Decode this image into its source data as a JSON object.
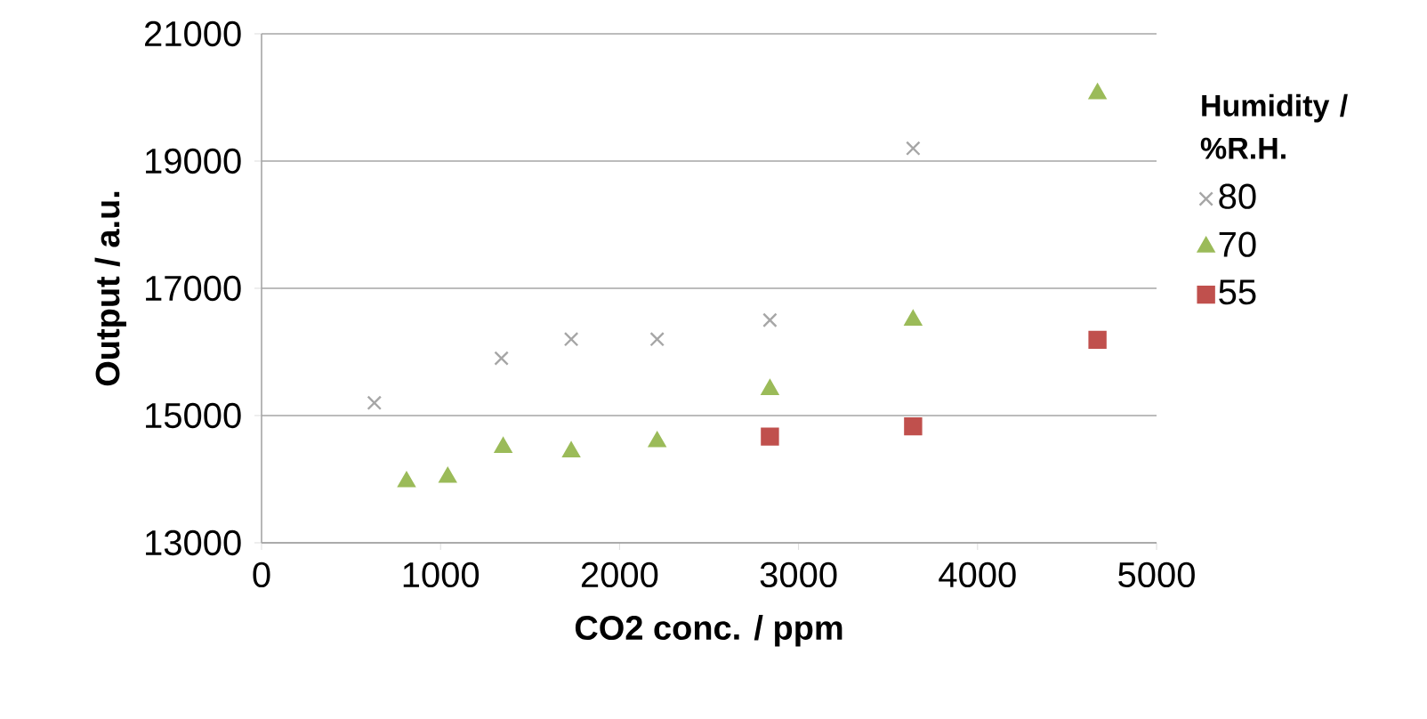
{
  "chart_data": {
    "type": "scatter",
    "xlabel": "CO2 conc.  /  ppm",
    "ylabel": "Output  /  a.u.",
    "legend_title": "Humidity / %R.H.",
    "xlim": [
      0,
      5000
    ],
    "xticks": [
      0,
      1000,
      2000,
      3000,
      4000,
      5000
    ],
    "ylim": [
      13000,
      21000
    ],
    "yticks": [
      13000,
      15000,
      17000,
      19000,
      21000
    ],
    "grid": "y",
    "legend": "right",
    "series": [
      {
        "name": "80",
        "color": "#a6a6a6",
        "marker": "cross",
        "x": [
          630,
          1340,
          1730,
          2210,
          2840,
          3640
        ],
        "values": [
          15200,
          15900,
          16200,
          16200,
          16500,
          19200
        ]
      },
      {
        "name": "70",
        "color": "#9bbb59",
        "marker": "triangle",
        "x": [
          810,
          1040,
          1350,
          1730,
          2210,
          2840,
          3640,
          4670
        ],
        "values": [
          13960,
          14030,
          14500,
          14430,
          14590,
          15410,
          16500,
          20060
        ]
      },
      {
        "name": "55",
        "color": "#c0504d",
        "marker": "square",
        "x": [
          2840,
          3640,
          4670
        ],
        "values": [
          14670,
          14830,
          16190
        ]
      }
    ]
  }
}
